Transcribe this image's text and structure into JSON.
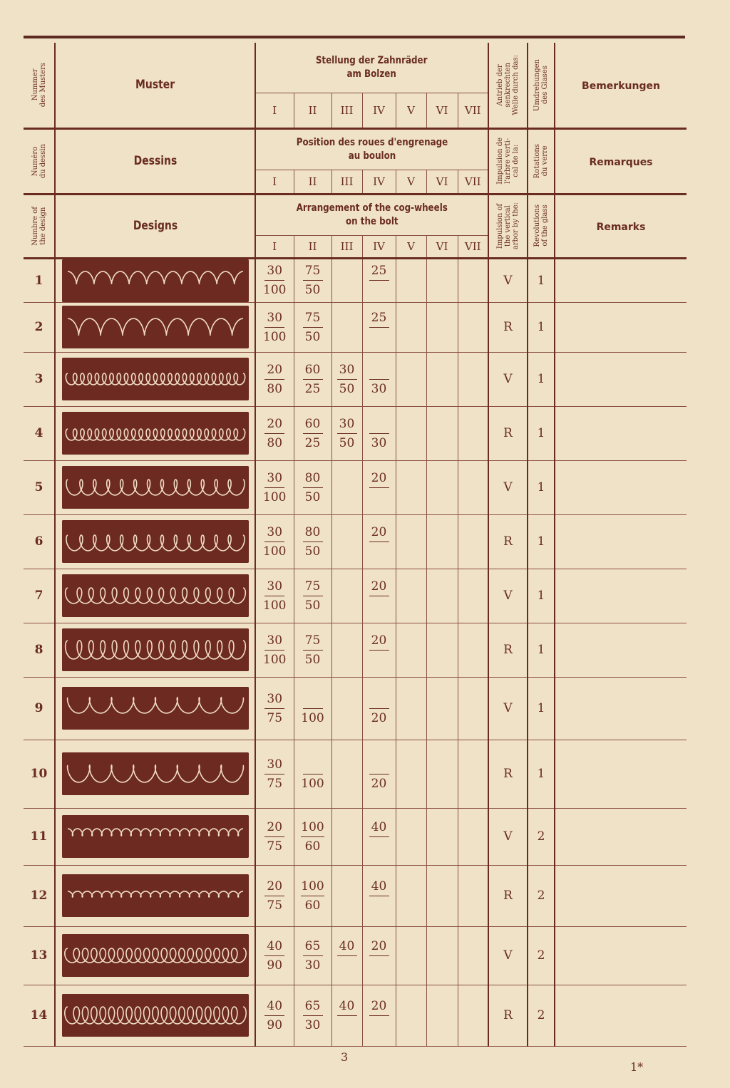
{
  "header": {
    "lang_de": {
      "number": "Nummer\ndes Musters",
      "design": "Muster",
      "gears_title": "Stellung der Zahnräder\nam Bolzen",
      "impulse": "Antrieb der\nsenkrechten\nWelle durch das:",
      "revolutions": "Umdrehungen\ndes Glases",
      "remarks": "Bemerkungen"
    },
    "lang_fr": {
      "number": "Numéro\ndu dessin",
      "design": "Dessins",
      "gears_title": "Position des roues d'engrenage\nau boulon",
      "impulse": "Impulsion de\nl'arbre verti-\ncal de la:",
      "revolutions": "Rotations\ndu verre",
      "remarks": "Remarques"
    },
    "lang_en": {
      "number": "Numbre of\nthe design",
      "design": "Designs",
      "gears_title": "Arrangement of the cog-wheels\non the bolt",
      "impulse": "Impulsion of\nthe vertical\narbor by the:",
      "revolutions": "Revolutions\nof the glass",
      "remarks": "Remarks"
    },
    "gear_positions": [
      "I",
      "II",
      "III",
      "IV",
      "V",
      "VI",
      "VII"
    ]
  },
  "rows": [
    {
      "num": "1",
      "gears": [
        [
          "30",
          "100"
        ],
        [
          "75",
          "50"
        ],
        [
          "",
          ""
        ],
        [
          "25",
          ""
        ],
        [
          "",
          ""
        ],
        [
          "",
          ""
        ],
        [
          "",
          ""
        ]
      ],
      "impulse": "V",
      "revolutions": "1"
    },
    {
      "num": "2",
      "gears": [
        [
          "30",
          "100"
        ],
        [
          "75",
          "50"
        ],
        [
          "",
          ""
        ],
        [
          "25",
          ""
        ],
        [
          "",
          ""
        ],
        [
          "",
          ""
        ],
        [
          "",
          ""
        ]
      ],
      "impulse": "R",
      "revolutions": "1"
    },
    {
      "num": "3",
      "gears": [
        [
          "20",
          "80"
        ],
        [
          "60",
          "25"
        ],
        [
          "30",
          "50"
        ],
        [
          "",
          "30"
        ],
        [
          "",
          ""
        ],
        [
          "",
          ""
        ],
        [
          "",
          ""
        ]
      ],
      "impulse": "V",
      "revolutions": "1"
    },
    {
      "num": "4",
      "gears": [
        [
          "20",
          "80"
        ],
        [
          "60",
          "25"
        ],
        [
          "30",
          "50"
        ],
        [
          "",
          "30"
        ],
        [
          "",
          ""
        ],
        [
          "",
          ""
        ],
        [
          "",
          ""
        ]
      ],
      "impulse": "R",
      "revolutions": "1"
    },
    {
      "num": "5",
      "gears": [
        [
          "30",
          "100"
        ],
        [
          "80",
          "50"
        ],
        [
          "",
          ""
        ],
        [
          "20",
          ""
        ],
        [
          "",
          ""
        ],
        [
          "",
          ""
        ],
        [
          "",
          ""
        ]
      ],
      "impulse": "V",
      "revolutions": "1"
    },
    {
      "num": "6",
      "gears": [
        [
          "30",
          "100"
        ],
        [
          "80",
          "50"
        ],
        [
          "",
          ""
        ],
        [
          "20",
          ""
        ],
        [
          "",
          ""
        ],
        [
          "",
          ""
        ],
        [
          "",
          ""
        ]
      ],
      "impulse": "R",
      "revolutions": "1"
    },
    {
      "num": "7",
      "gears": [
        [
          "30",
          "100"
        ],
        [
          "75",
          "50"
        ],
        [
          "",
          ""
        ],
        [
          "20",
          ""
        ],
        [
          "",
          ""
        ],
        [
          "",
          ""
        ],
        [
          "",
          ""
        ]
      ],
      "impulse": "V",
      "revolutions": "1"
    },
    {
      "num": "8",
      "gears": [
        [
          "30",
          "100"
        ],
        [
          "75",
          "50"
        ],
        [
          "",
          ""
        ],
        [
          "20",
          ""
        ],
        [
          "",
          ""
        ],
        [
          "",
          ""
        ],
        [
          "",
          ""
        ]
      ],
      "impulse": "R",
      "revolutions": "1"
    },
    {
      "num": "9",
      "gears": [
        [
          "30",
          "75"
        ],
        [
          "",
          "100"
        ],
        [
          "",
          ""
        ],
        [
          "",
          "20"
        ],
        [
          "",
          ""
        ],
        [
          "",
          ""
        ],
        [
          "",
          ""
        ]
      ],
      "impulse": "V",
      "revolutions": "1"
    },
    {
      "num": "10",
      "gears": [
        [
          "30",
          "75"
        ],
        [
          "",
          "100"
        ],
        [
          "",
          ""
        ],
        [
          "",
          "20"
        ],
        [
          "",
          ""
        ],
        [
          "",
          ""
        ],
        [
          "",
          ""
        ]
      ],
      "impulse": "R",
      "revolutions": "1"
    },
    {
      "num": "11",
      "gears": [
        [
          "20",
          "75"
        ],
        [
          "100",
          "60"
        ],
        [
          "",
          ""
        ],
        [
          "40",
          ""
        ],
        [
          "",
          ""
        ],
        [
          "",
          ""
        ],
        [
          "",
          ""
        ]
      ],
      "impulse": "V",
      "revolutions": "2"
    },
    {
      "num": "12",
      "gears": [
        [
          "20",
          "75"
        ],
        [
          "100",
          "60"
        ],
        [
          "",
          ""
        ],
        [
          "40",
          ""
        ],
        [
          "",
          ""
        ],
        [
          "",
          ""
        ],
        [
          "",
          ""
        ]
      ],
      "impulse": "R",
      "revolutions": "2"
    },
    {
      "num": "13",
      "gears": [
        [
          "40",
          "90"
        ],
        [
          "65",
          "30"
        ],
        [
          "40",
          ""
        ],
        [
          "20",
          ""
        ],
        [
          "",
          ""
        ],
        [
          "",
          ""
        ],
        [
          "",
          ""
        ]
      ],
      "impulse": "V",
      "revolutions": "2"
    },
    {
      "num": "14",
      "gears": [
        [
          "40",
          "90"
        ],
        [
          "65",
          "30"
        ],
        [
          "40",
          ""
        ],
        [
          "20",
          ""
        ],
        [
          "",
          ""
        ],
        [
          "",
          ""
        ],
        [
          "",
          ""
        ]
      ],
      "impulse": "R",
      "revolutions": "2"
    }
  ],
  "colors": {
    "paper": "#efe2c6",
    "ink": "#6a2c22",
    "pattern": "#6d2a20",
    "thread": "#f0dcc4"
  },
  "footer": {
    "page": "3",
    "signature": "1*"
  }
}
